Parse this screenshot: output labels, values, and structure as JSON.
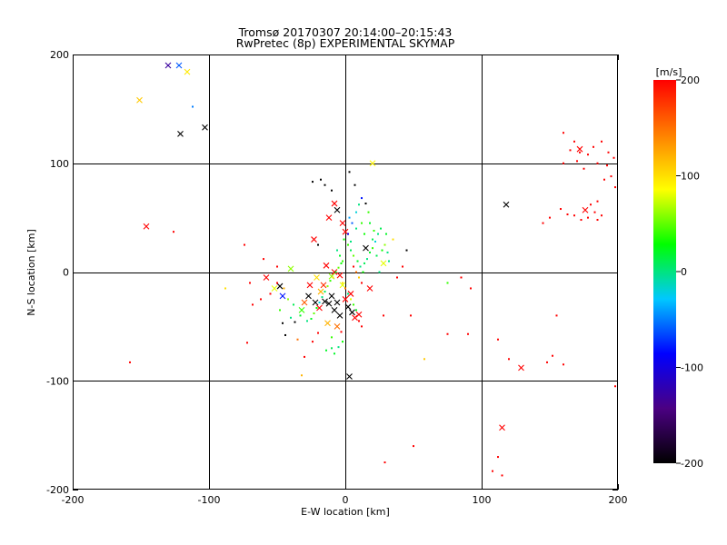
{
  "chart_data": {
    "type": "scatter",
    "title": "Tromsø 20170307 20:14:00–20:15:43",
    "subtitle": "RwPretec (8p) EXPERIMENTAL SKYMAP",
    "xlabel": "E-W location [km]",
    "ylabel": "N-S location [km]",
    "xlim": [
      -200,
      200
    ],
    "ylim": [
      -200,
      200
    ],
    "xticks": [
      "-200",
      "-100",
      "0",
      "100",
      "200"
    ],
    "yticks": [
      "-200",
      "-100",
      "0",
      "100",
      "200"
    ],
    "grid": true,
    "colorbar": {
      "label": "[m/s]",
      "range": [
        -200,
        200
      ],
      "ticks": [
        "200",
        "100",
        "0",
        "-100",
        "-200"
      ],
      "colormap": [
        "#000000",
        "#4b0082",
        "#0000ff",
        "#00c8ff",
        "#00ff00",
        "#ffff00",
        "#ff8000",
        "#ff0000"
      ]
    },
    "series": [
      {
        "marker": "x",
        "points": [
          [
            -130,
            190,
            -130
          ],
          [
            -122,
            190,
            -60
          ],
          [
            -116,
            184,
            95
          ],
          [
            -151,
            158,
            110
          ],
          [
            -121,
            127,
            -200
          ],
          [
            -103,
            133,
            -200
          ],
          [
            -146,
            42,
            200
          ],
          [
            118,
            62,
            -200
          ],
          [
            20,
            100,
            90
          ],
          [
            -58,
            -5,
            200
          ],
          [
            -52,
            -15,
            80
          ],
          [
            -46,
            -22,
            -80
          ],
          [
            -48,
            -13,
            -200
          ],
          [
            -32,
            -35,
            40
          ],
          [
            -27,
            -22,
            -200
          ],
          [
            -22,
            -28,
            -200
          ],
          [
            -19,
            -33,
            200
          ],
          [
            -15,
            -27,
            -200
          ],
          [
            -12,
            -29,
            -200
          ],
          [
            -10,
            -22,
            -200
          ],
          [
            -8,
            -35,
            -200
          ],
          [
            -6,
            -28,
            -200
          ],
          [
            -4,
            -40,
            -200
          ],
          [
            -13,
            -47,
            120
          ],
          [
            -6,
            -50,
            150
          ],
          [
            0,
            -25,
            200
          ],
          [
            2,
            -32,
            -200
          ],
          [
            5,
            -37,
            -200
          ],
          [
            7,
            -42,
            200
          ],
          [
            10,
            -39,
            200
          ],
          [
            18,
            -15,
            200
          ],
          [
            28,
            8,
            80
          ],
          [
            -40,
            3,
            60
          ],
          [
            -8,
            63,
            200
          ],
          [
            -6,
            57,
            -200
          ],
          [
            -2,
            45,
            200
          ],
          [
            -12,
            50,
            200
          ],
          [
            0,
            37,
            200
          ],
          [
            15,
            22,
            -200
          ],
          [
            -23,
            30,
            200
          ],
          [
            -18,
            -18,
            120
          ],
          [
            -14,
            6,
            200
          ],
          [
            -8,
            0,
            200
          ],
          [
            -4,
            -3,
            200
          ],
          [
            -21,
            -5,
            100
          ],
          [
            -10,
            -4,
            60
          ],
          [
            -26,
            -12,
            200
          ],
          [
            3,
            -96,
            -200
          ],
          [
            129,
            -88,
            200
          ],
          [
            115,
            -143,
            200
          ],
          [
            172,
            113,
            200
          ],
          [
            176,
            57,
            200
          ],
          [
            -2,
            -12,
            80
          ],
          [
            4,
            -20,
            200
          ],
          [
            -16,
            -12,
            180
          ],
          [
            -30,
            -28,
            160
          ]
        ]
      },
      {
        "marker": "dot",
        "points": [
          [
            -112,
            152,
            -50
          ],
          [
            -126,
            37,
            200
          ],
          [
            -158,
            -83,
            200
          ],
          [
            -74,
            25,
            200
          ],
          [
            -60,
            12,
            200
          ],
          [
            -50,
            5,
            200
          ],
          [
            -46,
            -47,
            -200
          ],
          [
            -44,
            -58,
            -200
          ],
          [
            -37,
            -46,
            -200
          ],
          [
            -35,
            -62,
            150
          ],
          [
            -30,
            -78,
            200
          ],
          [
            -32,
            -95,
            120
          ],
          [
            -24,
            -64,
            200
          ],
          [
            -20,
            -56,
            200
          ],
          [
            -14,
            -72,
            20
          ],
          [
            -10,
            -70,
            10
          ],
          [
            -8,
            -75,
            20
          ],
          [
            -5,
            -69,
            0
          ],
          [
            -2,
            -64,
            30
          ],
          [
            -20,
            25,
            -200
          ],
          [
            -24,
            83,
            -200
          ],
          [
            -18,
            85,
            -200
          ],
          [
            -15,
            80,
            -200
          ],
          [
            -10,
            75,
            -200
          ],
          [
            3,
            92,
            -200
          ],
          [
            7,
            80,
            -200
          ],
          [
            15,
            63,
            -200
          ],
          [
            17,
            55,
            40
          ],
          [
            12,
            45,
            40
          ],
          [
            8,
            40,
            0
          ],
          [
            20,
            30,
            10
          ],
          [
            30,
            35,
            20
          ],
          [
            32,
            10,
            0
          ],
          [
            25,
            0,
            0
          ],
          [
            45,
            20,
            -200
          ],
          [
            38,
            -5,
            200
          ],
          [
            42,
            5,
            200
          ],
          [
            48,
            -40,
            200
          ],
          [
            28,
            -40,
            200
          ],
          [
            75,
            -57,
            200
          ],
          [
            90,
            -57,
            200
          ],
          [
            92,
            -15,
            200
          ],
          [
            85,
            -5,
            200
          ],
          [
            75,
            -10,
            40
          ],
          [
            58,
            -80,
            110
          ],
          [
            50,
            -160,
            200
          ],
          [
            29,
            -175,
            200
          ],
          [
            112,
            -62,
            200
          ],
          [
            120,
            -80,
            200
          ],
          [
            148,
            -83,
            200
          ],
          [
            160,
            -85,
            200
          ],
          [
            155,
            -40,
            200
          ],
          [
            152,
            -77,
            200
          ],
          [
            108,
            -183,
            200
          ],
          [
            115,
            -187,
            200
          ],
          [
            112,
            -170,
            200
          ],
          [
            198,
            -105,
            200
          ],
          [
            160,
            128,
            200
          ],
          [
            150,
            50,
            200
          ],
          [
            145,
            45,
            200
          ],
          [
            158,
            58,
            200
          ],
          [
            163,
            53,
            200
          ],
          [
            168,
            52,
            200
          ],
          [
            173,
            48,
            200
          ],
          [
            178,
            50,
            200
          ],
          [
            183,
            55,
            200
          ],
          [
            185,
            48,
            200
          ],
          [
            188,
            52,
            200
          ],
          [
            168,
            120,
            200
          ],
          [
            172,
            110,
            200
          ],
          [
            178,
            108,
            200
          ],
          [
            182,
            115,
            200
          ],
          [
            188,
            120,
            200
          ],
          [
            193,
            110,
            200
          ],
          [
            197,
            105,
            200
          ],
          [
            192,
            98,
            200
          ],
          [
            185,
            100,
            200
          ],
          [
            175,
            95,
            200
          ],
          [
            170,
            102,
            200
          ],
          [
            165,
            112,
            200
          ],
          [
            160,
            100,
            200
          ],
          [
            195,
            88,
            200
          ],
          [
            190,
            85,
            200
          ],
          [
            198,
            78,
            200
          ],
          [
            180,
            62,
            200
          ],
          [
            185,
            65,
            200
          ],
          [
            -1,
            30,
            30
          ],
          [
            2,
            25,
            40
          ],
          [
            4,
            20,
            10
          ],
          [
            6,
            15,
            50
          ],
          [
            9,
            10,
            20
          ],
          [
            11,
            5,
            0
          ],
          [
            13,
            0,
            30
          ],
          [
            14,
            8,
            10
          ],
          [
            16,
            12,
            0
          ],
          [
            18,
            18,
            20
          ],
          [
            20,
            22,
            40
          ],
          [
            22,
            28,
            -20
          ],
          [
            24,
            35,
            0
          ],
          [
            26,
            40,
            10
          ],
          [
            3,
            50,
            -40
          ],
          [
            5,
            45,
            -60
          ],
          [
            8,
            55,
            -20
          ],
          [
            10,
            62,
            0
          ],
          [
            12,
            68,
            -80
          ],
          [
            2,
            35,
            -100
          ],
          [
            4,
            28,
            0
          ],
          [
            -3,
            8,
            30
          ],
          [
            -5,
            4,
            50
          ],
          [
            -7,
            0,
            20
          ],
          [
            -9,
            -5,
            100
          ],
          [
            -11,
            -8,
            40
          ],
          [
            -13,
            -13,
            60
          ],
          [
            -15,
            -18,
            10
          ],
          [
            -17,
            -23,
            0
          ],
          [
            -19,
            -28,
            -20
          ],
          [
            -21,
            -33,
            30
          ],
          [
            -23,
            -38,
            50
          ],
          [
            -25,
            -43,
            20
          ],
          [
            -2,
            -10,
            100
          ],
          [
            0,
            -15,
            150
          ],
          [
            2,
            -20,
            0
          ],
          [
            4,
            -25,
            80
          ],
          [
            6,
            -30,
            40
          ],
          [
            8,
            -35,
            20
          ],
          [
            10,
            -45,
            200
          ],
          [
            12,
            -50,
            200
          ],
          [
            -3,
            -55,
            200
          ],
          [
            -10,
            -60,
            40
          ],
          [
            -28,
            -45,
            0
          ],
          [
            -33,
            -40,
            20
          ],
          [
            -38,
            -30,
            10
          ],
          [
            -42,
            -25,
            60
          ],
          [
            -45,
            -15,
            120
          ],
          [
            -50,
            -10,
            200
          ],
          [
            -55,
            -20,
            200
          ],
          [
            -62,
            -25,
            200
          ],
          [
            -68,
            -30,
            200
          ],
          [
            -70,
            -10,
            200
          ],
          [
            -72,
            -65,
            200
          ],
          [
            -88,
            -15,
            100
          ],
          [
            -48,
            -35,
            40
          ],
          [
            -40,
            -42,
            0
          ],
          [
            6,
            5,
            200
          ],
          [
            8,
            0,
            150
          ],
          [
            10,
            -5,
            110
          ],
          [
            12,
            -10,
            200
          ],
          [
            14,
            35,
            30
          ],
          [
            18,
            45,
            20
          ],
          [
            21,
            38,
            40
          ],
          [
            23,
            15,
            10
          ],
          [
            27,
            20,
            30
          ],
          [
            29,
            25,
            60
          ],
          [
            31,
            18,
            0
          ],
          [
            35,
            30,
            100
          ],
          [
            -6,
            20,
            0
          ],
          [
            -4,
            15,
            20
          ],
          [
            -2,
            10,
            40
          ]
        ]
      }
    ]
  }
}
